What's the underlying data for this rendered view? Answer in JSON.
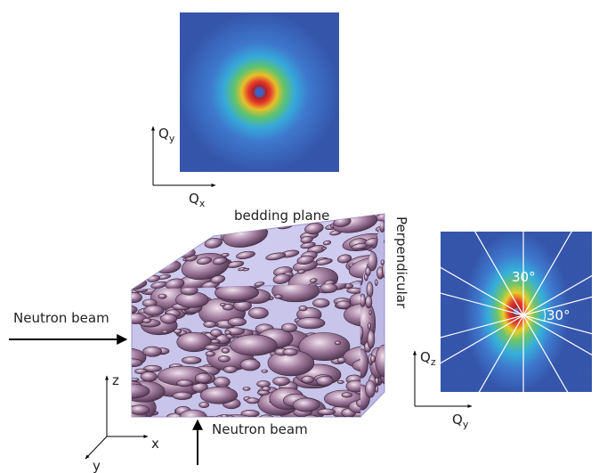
{
  "top_pattern": {
    "y_axis": {
      "main": "Q",
      "sub": "y"
    },
    "x_axis": {
      "main": "Q",
      "sub": "x"
    }
  },
  "sample": {
    "top_label": "bedding plane",
    "side_label": "Perpendicular",
    "beam_side": "Neutron beam",
    "beam_bottom": "Neutron beam"
  },
  "axes": {
    "z": "z",
    "x": "x",
    "y": "y"
  },
  "side_pattern": {
    "angle_top": "30°",
    "angle_right": "30°",
    "y_axis": {
      "main": "Q",
      "sub": "z"
    },
    "x_axis": {
      "main": "Q",
      "sub": "y"
    }
  }
}
